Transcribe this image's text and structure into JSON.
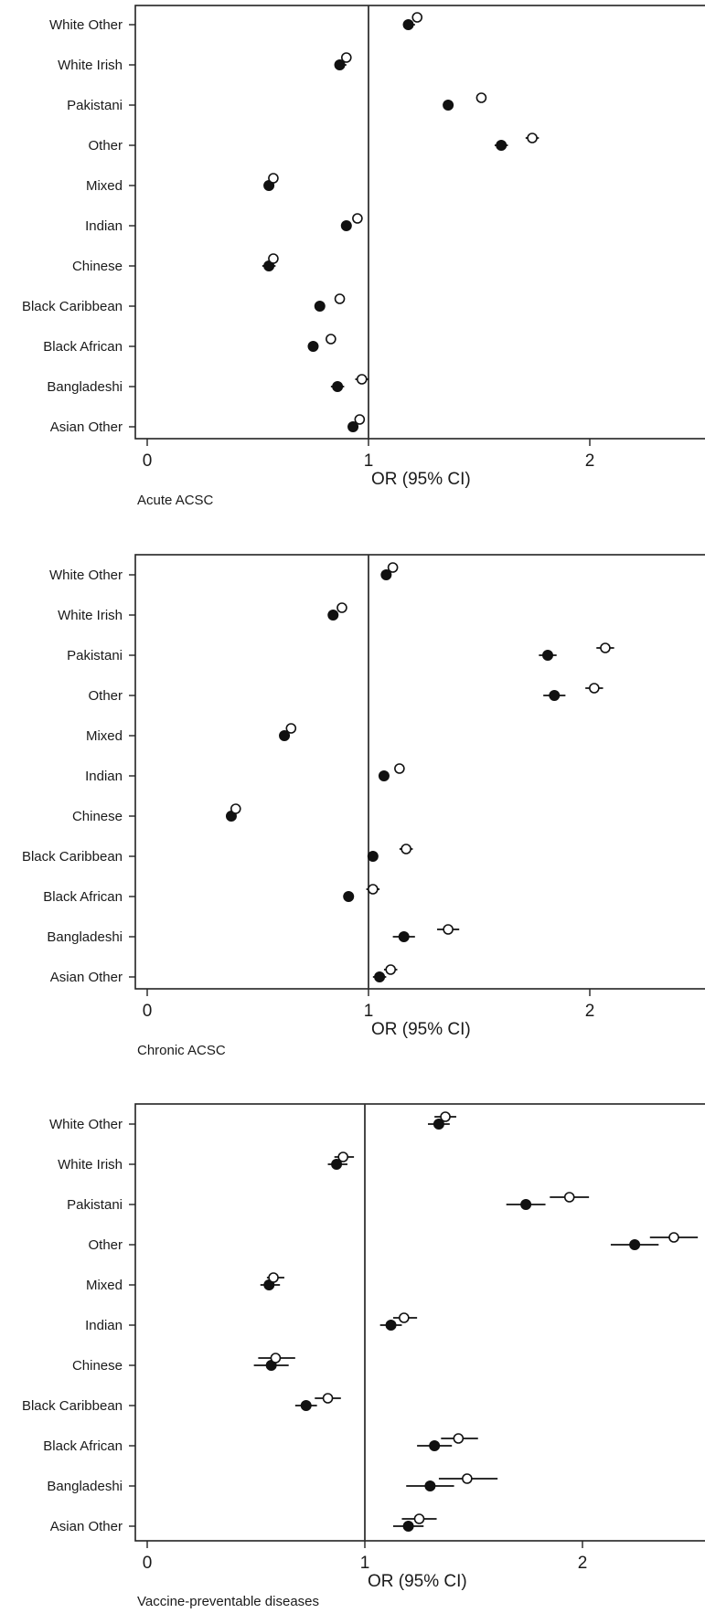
{
  "chart_data": [
    {
      "type": "scatter",
      "title": "Acute ACSC",
      "xlabel": "OR (95% CI)",
      "xticks": [
        "0",
        "1",
        "2"
      ],
      "xlim": [
        -0.05,
        2.52
      ],
      "reference_line": 1,
      "categories": [
        "White Other",
        "White Irish",
        "Pakistani",
        "Other",
        "Mixed",
        "Indian",
        "Chinese",
        "Black Caribbean",
        "Black African",
        "Bangladeshi",
        "Asian Other"
      ],
      "series": [
        {
          "marker": "filled",
          "values": [
            1.18,
            0.87,
            1.36,
            1.6,
            0.55,
            0.9,
            0.55,
            0.78,
            0.75,
            0.86,
            0.93
          ],
          "lower": [
            1.16,
            0.85,
            1.34,
            1.57,
            0.53,
            0.89,
            0.52,
            0.76,
            0.74,
            0.83,
            0.91
          ],
          "upper": [
            1.21,
            0.9,
            1.38,
            1.63,
            0.57,
            0.92,
            0.58,
            0.8,
            0.76,
            0.89,
            0.95
          ]
        },
        {
          "marker": "hollow",
          "values": [
            1.22,
            0.9,
            1.51,
            1.74,
            0.57,
            0.95,
            0.57,
            0.87,
            0.83,
            0.97,
            0.96
          ],
          "lower": [
            1.2,
            0.88,
            1.49,
            1.71,
            0.56,
            0.93,
            0.55,
            0.85,
            0.82,
            0.94,
            0.94
          ],
          "upper": [
            1.24,
            0.92,
            1.53,
            1.77,
            0.59,
            0.96,
            0.59,
            0.89,
            0.84,
            1.0,
            0.98
          ]
        }
      ]
    },
    {
      "type": "scatter",
      "title": "Chronic ACSC",
      "xlabel": "OR (95% CI)",
      "xticks": [
        "0",
        "1",
        "2"
      ],
      "xlim": [
        -0.05,
        2.52
      ],
      "reference_line": 1,
      "categories": [
        "White Other",
        "White Irish",
        "Pakistani",
        "Other",
        "Mixed",
        "Indian",
        "Chinese",
        "Black Caribbean",
        "Black African",
        "Bangladeshi",
        "Asian Other"
      ],
      "series": [
        {
          "marker": "filled",
          "values": [
            1.08,
            0.84,
            1.81,
            1.84,
            0.62,
            1.07,
            0.38,
            1.02,
            0.91,
            1.16,
            1.05
          ],
          "lower": [
            1.06,
            0.82,
            1.77,
            1.79,
            0.6,
            1.05,
            0.36,
            1.0,
            0.89,
            1.11,
            1.02
          ],
          "upper": [
            1.1,
            0.86,
            1.85,
            1.89,
            0.64,
            1.09,
            0.4,
            1.04,
            0.93,
            1.21,
            1.08
          ]
        },
        {
          "marker": "hollow",
          "values": [
            1.11,
            0.88,
            2.07,
            2.02,
            0.65,
            1.14,
            0.4,
            1.17,
            1.02,
            1.36,
            1.1
          ],
          "lower": [
            1.09,
            0.86,
            2.03,
            1.98,
            0.63,
            1.12,
            0.38,
            1.14,
            0.99,
            1.31,
            1.07
          ],
          "upper": [
            1.13,
            0.9,
            2.11,
            2.06,
            0.67,
            1.16,
            0.42,
            1.2,
            1.05,
            1.41,
            1.13
          ]
        }
      ]
    },
    {
      "type": "scatter",
      "title": "Vaccine-preventable diseases",
      "xlabel": "OR (95% CI)",
      "xticks": [
        "0",
        "1",
        "2"
      ],
      "xlim": [
        -0.05,
        2.55
      ],
      "reference_line": 1,
      "categories": [
        "White Other",
        "White Irish",
        "Pakistani",
        "Other",
        "Mixed",
        "Indian",
        "Chinese",
        "Black Caribbean",
        "Black African",
        "Bangladeshi",
        "Asian Other"
      ],
      "series": [
        {
          "marker": "filled",
          "values": [
            1.34,
            0.87,
            1.74,
            2.24,
            0.56,
            1.12,
            0.57,
            0.73,
            1.32,
            1.3,
            1.2
          ],
          "lower": [
            1.29,
            0.83,
            1.65,
            2.13,
            0.52,
            1.07,
            0.49,
            0.68,
            1.24,
            1.19,
            1.13
          ],
          "upper": [
            1.39,
            0.92,
            1.83,
            2.35,
            0.61,
            1.17,
            0.65,
            0.78,
            1.4,
            1.41,
            1.27
          ]
        },
        {
          "marker": "hollow",
          "values": [
            1.37,
            0.9,
            1.94,
            2.42,
            0.58,
            1.18,
            0.59,
            0.83,
            1.43,
            1.47,
            1.25
          ],
          "lower": [
            1.32,
            0.86,
            1.85,
            2.31,
            0.55,
            1.13,
            0.51,
            0.77,
            1.35,
            1.34,
            1.17
          ],
          "upper": [
            1.42,
            0.95,
            2.03,
            2.53,
            0.63,
            1.24,
            0.68,
            0.89,
            1.52,
            1.61,
            1.33
          ]
        }
      ]
    }
  ]
}
